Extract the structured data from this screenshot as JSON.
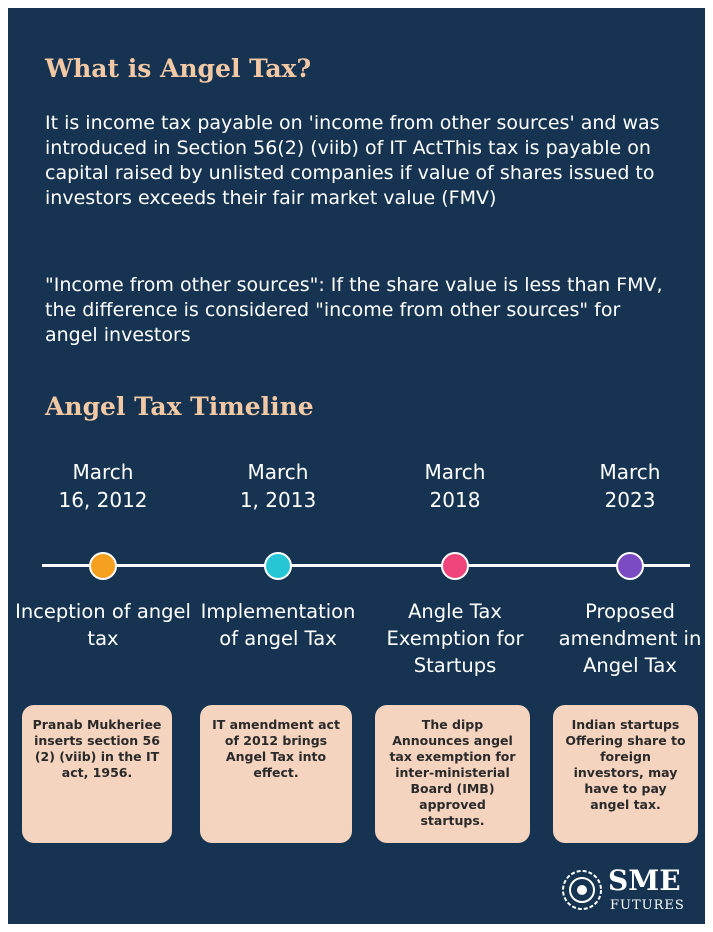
{
  "header": {
    "title": "What is Angel Tax?"
  },
  "paragraphs": [
    "It is income tax payable on 'income from other sources' and was introduced in Section 56(2) (viib) of IT ActThis tax is payable on capital raised by unlisted companies if value of shares issued to investors exceeds their fair market value (FMV)",
    "\"Income from other sources\": If the share value is less than FMV, the difference is considered \"income from other sources\" for angel investors"
  ],
  "timeline": {
    "title": "Angel Tax Timeline",
    "events": [
      {
        "month": "March",
        "day": "16, 2012",
        "color": "#f5a01e",
        "title": "Inception of angel tax",
        "description": "Pranab Mukheriee inserts section 56 (2) (viib) in the IT act, 1956."
      },
      {
        "month": "March",
        "day": "1, 2013",
        "color": "#26c6d6",
        "title": "Implementation of angel Tax",
        "description": "IT amendment act of 2012 brings Angel Tax into effect."
      },
      {
        "month": "March",
        "day": "2018",
        "color": "#f0457a",
        "title": "Angle Tax Exemption for Startups",
        "description": "The dipp Announces angel tax exemption for inter-ministerial Board (IMB) approved startups."
      },
      {
        "month": "March",
        "day": "2023",
        "color": "#7a4bc2",
        "title": "Proposed amendment in Angel Tax",
        "description": "Indian startups Offering share to foreign investors, may have to pay angel tax."
      }
    ]
  },
  "logo": {
    "name": "SME",
    "sub": "FUTURES"
  }
}
